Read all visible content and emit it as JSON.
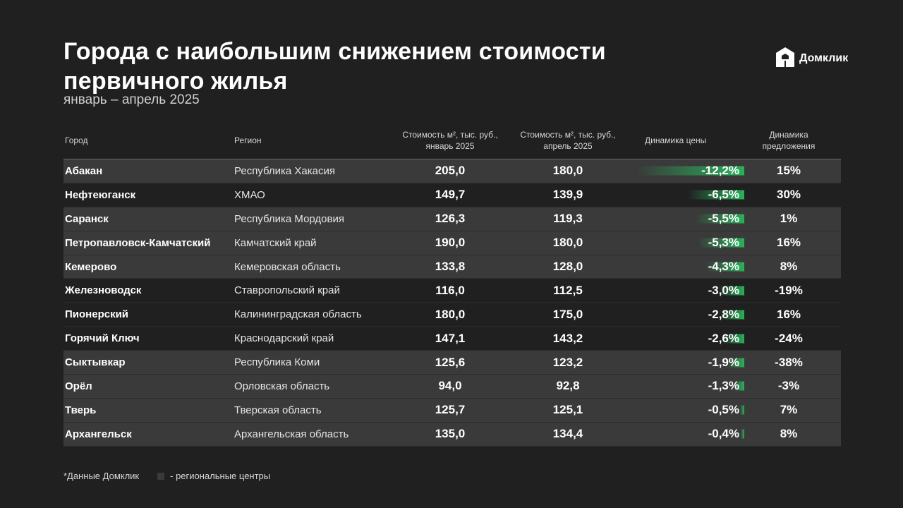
{
  "header": {
    "title": "Города с наибольшим снижением стоимости первичного жилья",
    "subtitle": "январь – апрель 2025",
    "logo_text": "Домклик",
    "logo_icon": "house-icon"
  },
  "table": {
    "columns": {
      "city": "Город",
      "region": "Регион",
      "price_jan_line1": "Стоимость м², тыс. руб.,",
      "price_jan_line2": "январь 2025",
      "price_apr_line1": "Стоимость м², тыс. руб.,",
      "price_apr_line2": "апрель 2025",
      "price_dynamics": "Динамика цены",
      "supply_line1": "Динамика",
      "supply_line2": "предложения"
    },
    "rows": [
      {
        "city": "Абакан",
        "region": "Республика Хакасия",
        "jan": "205,0",
        "apr": "180,0",
        "dyn": "-12,2%",
        "dyn_value": -12.2,
        "supply": "15%",
        "regional_center": true
      },
      {
        "city": "Нефтеюганск",
        "region": "ХМАО",
        "jan": "149,7",
        "apr": "139,9",
        "dyn": "-6,5%",
        "dyn_value": -6.5,
        "supply": "30%",
        "regional_center": false
      },
      {
        "city": "Саранск",
        "region": "Республика Мордовия",
        "jan": "126,3",
        "apr": "119,3",
        "dyn": "-5,5%",
        "dyn_value": -5.5,
        "supply": "1%",
        "regional_center": true
      },
      {
        "city": "Петропавловск-Камчатский",
        "region": "Камчатский край",
        "jan": "190,0",
        "apr": "180,0",
        "dyn": "-5,3%",
        "dyn_value": -5.3,
        "supply": "16%",
        "regional_center": true
      },
      {
        "city": "Кемерово",
        "region": "Кемеровская область",
        "jan": "133,8",
        "apr": "128,0",
        "dyn": "-4,3%",
        "dyn_value": -4.3,
        "supply": "8%",
        "regional_center": true
      },
      {
        "city": "Железноводск",
        "region": "Ставропольский край",
        "jan": "116,0",
        "apr": "112,5",
        "dyn": "-3,0%",
        "dyn_value": -3.0,
        "supply": "-19%",
        "regional_center": false
      },
      {
        "city": "Пионерский",
        "region": "Калининградская область",
        "jan": "180,0",
        "apr": "175,0",
        "dyn": "-2,8%",
        "dyn_value": -2.8,
        "supply": "16%",
        "regional_center": false
      },
      {
        "city": "Горячий Ключ",
        "region": "Краснодарский край",
        "jan": "147,1",
        "apr": "143,2",
        "dyn": "-2,6%",
        "dyn_value": -2.6,
        "supply": "-24%",
        "regional_center": false
      },
      {
        "city": "Сыктывкар",
        "region": "Республика Коми",
        "jan": "125,6",
        "apr": "123,2",
        "dyn": "-1,9%",
        "dyn_value": -1.9,
        "supply": "-38%",
        "regional_center": true
      },
      {
        "city": "Орёл",
        "region": "Орловская область",
        "jan": "94,0",
        "apr": "92,8",
        "dyn": "-1,3%",
        "dyn_value": -1.3,
        "supply": "-3%",
        "regional_center": true
      },
      {
        "city": "Тверь",
        "region": "Тверская область",
        "jan": "125,7",
        "apr": "125,1",
        "dyn": "-0,5%",
        "dyn_value": -0.5,
        "supply": "7%",
        "regional_center": true
      },
      {
        "city": "Архангельск",
        "region": "Архангельская область",
        "jan": "135,0",
        "apr": "134,4",
        "dyn": "-0,4%",
        "dyn_value": -0.4,
        "supply": "8%",
        "regional_center": true
      }
    ]
  },
  "footer": {
    "source": "*Данные Домклик",
    "legend": "- региональные центры"
  },
  "colors": {
    "background": "#202020",
    "highlight_row": "#3a3a3a",
    "bar_green": "#27b35a"
  }
}
